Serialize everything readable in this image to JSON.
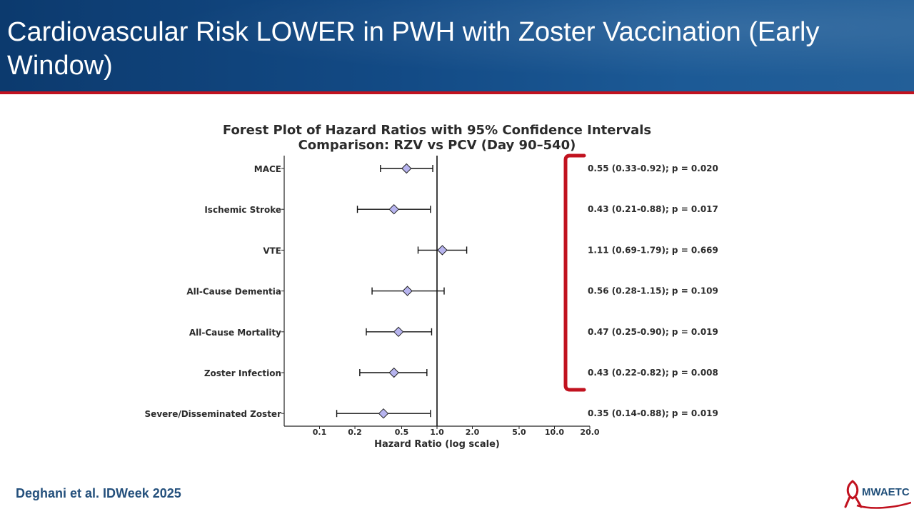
{
  "slide": {
    "title": "Cardiovascular Risk LOWER in PWH with Zoster Vaccination (Early Window)",
    "citation": "Deghani et al. IDWeek 2025",
    "logo_text": "MWAETC"
  },
  "colors": {
    "header": "#134b86",
    "accent_red": "#c1121f",
    "marker_fill": "#b7b4ef",
    "citation": "#24507c"
  },
  "chart_data": {
    "type": "forest",
    "title": "Forest Plot of Hazard Ratios with 95% Confidence Intervals",
    "subtitle": "Comparison: RZV vs PCV (Day 90–540)",
    "xlabel": "Hazard Ratio (log scale)",
    "xscale": "log",
    "xlim": [
      0.05,
      20.0
    ],
    "xticks": [
      0.1,
      0.2,
      0.5,
      1.0,
      2.0,
      5.0,
      10.0,
      20.0
    ],
    "xtick_labels": [
      "0.1",
      "0.2",
      "0.5",
      "1.0",
      "2.0",
      "5.0",
      "10.0",
      "20.0"
    ],
    "reference_line": 1.0,
    "rows": [
      {
        "label": "MACE",
        "hr": 0.55,
        "lo": 0.33,
        "hi": 0.92,
        "annotation": "0.55 (0.33-0.92); p = 0.020"
      },
      {
        "label": "Ischemic Stroke",
        "hr": 0.43,
        "lo": 0.21,
        "hi": 0.88,
        "annotation": "0.43 (0.21-0.88); p = 0.017"
      },
      {
        "label": "VTE",
        "hr": 1.11,
        "lo": 0.69,
        "hi": 1.79,
        "annotation": "1.11 (0.69-1.79); p = 0.669"
      },
      {
        "label": "All-Cause Dementia",
        "hr": 0.56,
        "lo": 0.28,
        "hi": 1.15,
        "annotation": "0.56 (0.28-1.15); p = 0.109"
      },
      {
        "label": "All-Cause Mortality",
        "hr": 0.47,
        "lo": 0.25,
        "hi": 0.9,
        "annotation": "0.47 (0.25-0.90); p = 0.019"
      },
      {
        "label": "Zoster Infection",
        "hr": 0.43,
        "lo": 0.22,
        "hi": 0.82,
        "annotation": "0.43 (0.22-0.82); p = 0.008"
      },
      {
        "label": "Severe/Disseminated Zoster",
        "hr": 0.35,
        "lo": 0.14,
        "hi": 0.88,
        "annotation": "0.35 (0.14-0.88); p = 0.019"
      }
    ],
    "bracket_rows": [
      0,
      5
    ]
  }
}
